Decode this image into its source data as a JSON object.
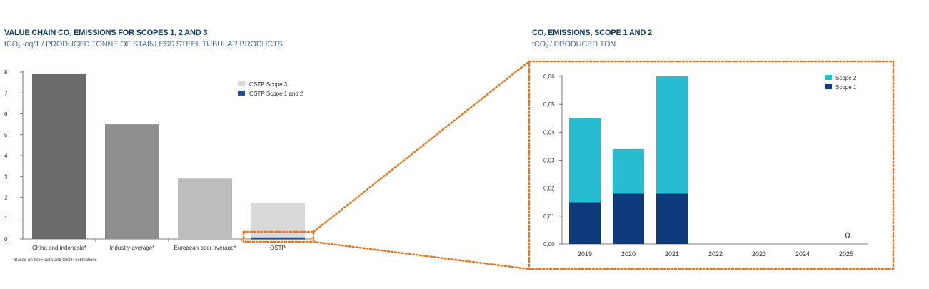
{
  "chart_data": [
    {
      "type": "bar",
      "title_main": "VALUE CHAIN CO",
      "title_sub": "2",
      "title_rest": " EMISSIONS FOR SCOPES 1, 2 AND 3",
      "subtitle_main": "tCO",
      "subtitle_sub": "2",
      "subtitle_rest": " -eq/T  / PRODUCED TONNE OF STAINLESS STEEL TUBULAR PRODUCTS",
      "categories": [
        "China and indonesia*",
        "Industry average*",
        "European peer average*",
        "OSTP"
      ],
      "ylim": [
        0,
        8
      ],
      "yticks": [
        "0",
        "1",
        "2",
        "3",
        "4",
        "5",
        "6",
        "7",
        "8"
      ],
      "series": [
        {
          "name": "OSTP Scope 1 and  2",
          "color": "#1b4f9c",
          "values": [
            null,
            null,
            null,
            0.08
          ]
        },
        {
          "name": "OSTP Scope 3",
          "color": "#d9d9d9",
          "values": [
            null,
            null,
            null,
            1.67
          ]
        }
      ],
      "totals": [
        {
          "category": "China and indonesia*",
          "value": 7.9,
          "color": "#6b6b6b"
        },
        {
          "category": "Industry average*",
          "value": 5.5,
          "color": "#8e8e8e"
        },
        {
          "category": "European peer average*",
          "value": 2.9,
          "color": "#bdbdbd"
        }
      ],
      "legend": [
        {
          "label": "OSTP Scope 3",
          "color": "#d9d9d9"
        },
        {
          "label": "OSTP Scope 1 and  2",
          "color": "#1b4f9c"
        }
      ],
      "legend_position": "top-right",
      "footnote": "*Based on ISSF data and OSTP estimations"
    },
    {
      "type": "bar",
      "title_main": "CO",
      "title_sub": "2",
      "title_rest": " EMISSIONS, SCOPE 1 AND 2",
      "subtitle_main": "tCO",
      "subtitle_sub": "2",
      "subtitle_rest": " / PRODUCED TON",
      "categories": [
        "2019",
        "2020",
        "2021",
        "2022",
        "2023",
        "2024",
        "2025"
      ],
      "ylim": [
        0,
        0.06
      ],
      "yticks": [
        "0,00",
        "0,01",
        "0,02",
        "0,03",
        "0,04",
        "0,05",
        "0,06"
      ],
      "series": [
        {
          "name": "Scope 1",
          "color": "#0d3a7a",
          "values": [
            0.015,
            0.018,
            0.018,
            null,
            null,
            null,
            null
          ]
        },
        {
          "name": "Scope 2",
          "color": "#27bccf",
          "values": [
            0.03,
            0.016,
            0.042,
            null,
            null,
            null,
            null
          ]
        }
      ],
      "legend": [
        {
          "label": "Scope 2",
          "color": "#27bccf"
        },
        {
          "label": "Scope 1",
          "color": "#0d3a7a"
        }
      ],
      "legend_position": "top-right",
      "annotation": "0",
      "grid": false,
      "highlight_color": "#e8761e"
    }
  ]
}
